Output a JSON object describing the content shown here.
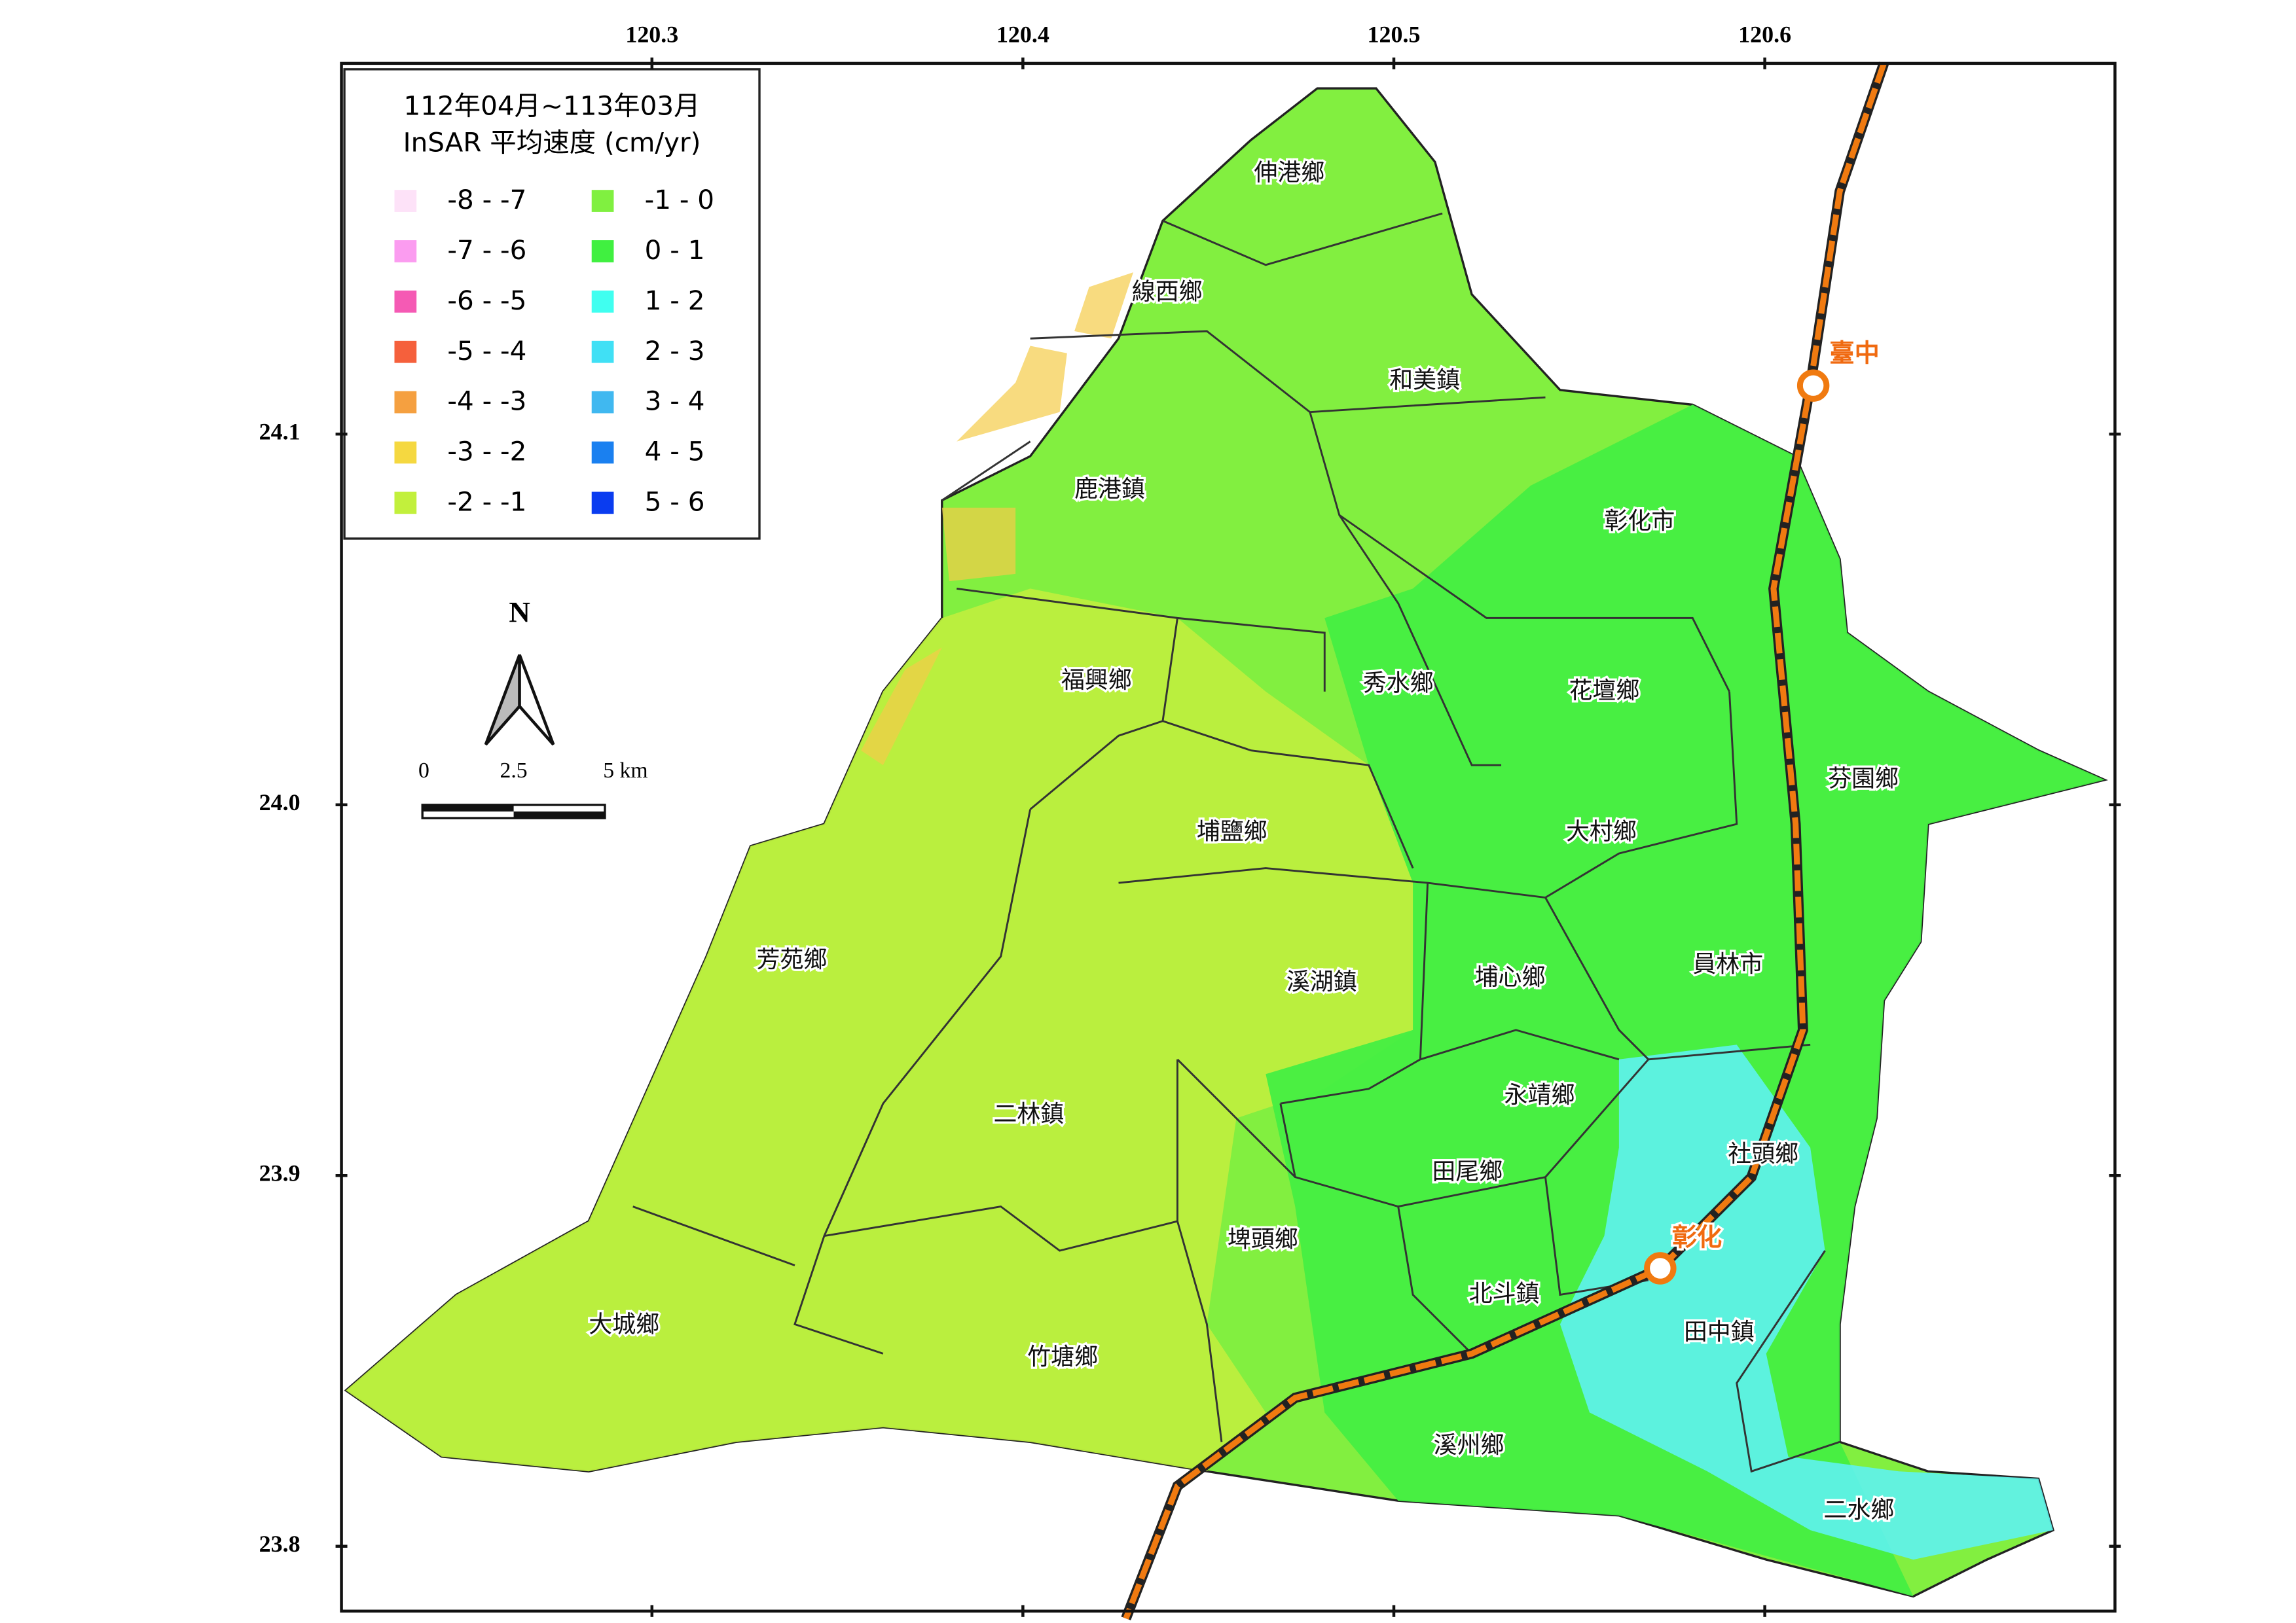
{
  "map": {
    "xlim": [
      120.2163,
      120.6944
    ],
    "ylim": [
      23.7825,
      24.2
    ],
    "xticks": [
      120.3,
      120.4,
      120.5,
      120.6
    ],
    "yticks": [
      {
        "value": 24.1,
        "label": "24.1"
      },
      {
        "value": 24,
        "label": "24.0"
      },
      {
        "value": 23.9,
        "label": "23.9"
      },
      {
        "value": 23.8,
        "label": "23.8"
      }
    ],
    "legend": {
      "title": [
        "112年04月~113年03月",
        "InSAR 平均速度 (cm/yr)"
      ],
      "items": [
        {
          "label": "-8 - -7",
          "color": "#fde2f8"
        },
        {
          "label": "-7 - -6",
          "color": "#fb9cf0"
        },
        {
          "label": "-6 - -5",
          "color": "#f55ab4"
        },
        {
          "label": "-5 - -4",
          "color": "#f5603c"
        },
        {
          "label": "-4 - -3",
          "color": "#f5a040"
        },
        {
          "label": "-3 - -2",
          "color": "#f5d840"
        },
        {
          "label": "-2 - -1",
          "color": "#c2f03c"
        },
        {
          "label": "-1 - 0",
          "color": "#80f040"
        },
        {
          "label": "0 - 1",
          "color": "#40f040"
        },
        {
          "label": "1 - 2",
          "color": "#40fff0"
        },
        {
          "label": "2 - 3",
          "color": "#40e0f5"
        },
        {
          "label": "3 - 4",
          "color": "#40b8f0"
        },
        {
          "label": "4 - 5",
          "color": "#1a80f0"
        },
        {
          "label": "5 - 6",
          "color": "#0a3cf0"
        }
      ]
    },
    "north": "N",
    "scale_bar": [
      "0",
      "2.5",
      "5 km"
    ],
    "townships": [
      "伸港鄉",
      "線西鄉",
      "和美鎮",
      "鹿港鎮",
      "彰化市",
      "福興鄉",
      "秀水鄉",
      "花壇鄉",
      "芬園鄉",
      "埔鹽鄉",
      "大村鄉",
      "芳苑鄉",
      "溪湖鎮",
      "埔心鄉",
      "員林市",
      "永靖鄉",
      "二林鎮",
      "社頭鄉",
      "田尾鄉",
      "埤頭鄉",
      "北斗鎮",
      "田中鎮",
      "大城鄉",
      "竹塘鄉",
      "溪州鄉",
      "二水鄉"
    ],
    "stations": [
      "臺中",
      "彰化"
    ]
  }
}
